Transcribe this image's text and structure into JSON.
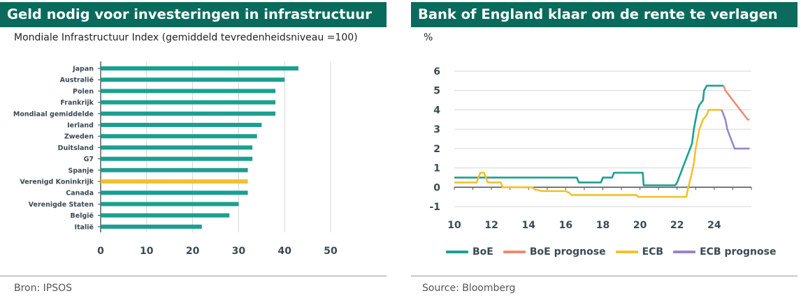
{
  "left": {
    "title": "Geld nodig voor investeringen in infrastructuur",
    "subtitle": "Mondiale Infrastructuur Index (gemiddeld tevredenheidsniveau =100)",
    "source": "Bron: IPSOS"
  },
  "right": {
    "title": "Bank of England klaar om de rente te verlagen",
    "subtitle": "%",
    "source": "Source: Bloomberg"
  },
  "colors": {
    "teal": "#1aa090",
    "yellow": "#f2c12e",
    "salmon": "#f08a74",
    "purple": "#9a86c8",
    "title_bg": "#0a6b5c"
  },
  "chart_data": [
    {
      "type": "bar",
      "orientation": "horizontal",
      "title": "Geld nodig voor investeringen in infrastructuur",
      "subtitle": "Mondiale Infrastructuur Index (gemiddeld tevredenheidsniveau =100)",
      "categories": [
        "Japan",
        "Australië",
        "Polen",
        "Frankrijk",
        "Mondiaal gemiddelde",
        "Ierland",
        "Zweden",
        "Duitsland",
        "G7",
        "Spanje",
        "Verenigd Koninkrijk",
        "Canada",
        "Verenigde Staten",
        "België",
        "Italië"
      ],
      "values": [
        43,
        40,
        38,
        38,
        38,
        35,
        34,
        33,
        33,
        32,
        32,
        32,
        30,
        28,
        22
      ],
      "highlight": "Verenigd Koninkrijk",
      "xlim": [
        0,
        50
      ],
      "xticks": [
        "0",
        "10",
        "20",
        "30",
        "40",
        "50"
      ],
      "grid": "vertical gridlines"
    },
    {
      "type": "line",
      "title": "Bank of England klaar om de rente te verlagen",
      "ylabel": "%",
      "ylim": [
        -1,
        6
      ],
      "yticks": [
        "6",
        "5",
        "4",
        "3",
        "2",
        "1",
        "0",
        "-1"
      ],
      "xlim": [
        10,
        26
      ],
      "xticks": [
        "10",
        "12",
        "14",
        "16",
        "18",
        "20",
        "22",
        "24"
      ],
      "legend_position": "bottom",
      "series": [
        {
          "name": "BoE",
          "color": "#1aa090",
          "points": [
            [
              10,
              0.5
            ],
            [
              16.6,
              0.5
            ],
            [
              16.7,
              0.25
            ],
            [
              17.9,
              0.25
            ],
            [
              18.0,
              0.5
            ],
            [
              18.5,
              0.5
            ],
            [
              18.6,
              0.75
            ],
            [
              20.15,
              0.75
            ],
            [
              20.2,
              0.1
            ],
            [
              21.9,
              0.1
            ],
            [
              22.0,
              0.25
            ],
            [
              22.1,
              0.5
            ],
            [
              22.2,
              0.75
            ],
            [
              22.3,
              1.0
            ],
            [
              22.4,
              1.25
            ],
            [
              22.6,
              1.75
            ],
            [
              22.8,
              2.25
            ],
            [
              22.9,
              3.0
            ],
            [
              23.0,
              3.5
            ],
            [
              23.1,
              4.0
            ],
            [
              23.2,
              4.25
            ],
            [
              23.4,
              4.5
            ],
            [
              23.45,
              5.0
            ],
            [
              23.6,
              5.25
            ],
            [
              24.5,
              5.25
            ]
          ]
        },
        {
          "name": "BoE prognose",
          "color": "#f08a74",
          "points": [
            [
              24.5,
              5.25
            ],
            [
              24.6,
              5.0
            ],
            [
              24.8,
              4.75
            ],
            [
              25.0,
              4.5
            ],
            [
              25.2,
              4.25
            ],
            [
              25.4,
              4.0
            ],
            [
              25.6,
              3.75
            ],
            [
              25.8,
              3.5
            ],
            [
              25.9,
              3.5
            ]
          ]
        },
        {
          "name": "ECB",
          "color": "#f2c12e",
          "points": [
            [
              10,
              0.25
            ],
            [
              11.2,
              0.25
            ],
            [
              11.3,
              0.5
            ],
            [
              11.4,
              0.75
            ],
            [
              11.6,
              0.75
            ],
            [
              11.8,
              0.25
            ],
            [
              12.5,
              0.25
            ],
            [
              12.6,
              0.0
            ],
            [
              14.2,
              0.0
            ],
            [
              14.3,
              -0.1
            ],
            [
              14.7,
              -0.2
            ],
            [
              16.0,
              -0.2
            ],
            [
              16.2,
              -0.3
            ],
            [
              16.3,
              -0.4
            ],
            [
              19.8,
              -0.4
            ],
            [
              19.9,
              -0.5
            ],
            [
              22.5,
              -0.5
            ],
            [
              22.6,
              0.0
            ],
            [
              22.8,
              0.75
            ],
            [
              22.9,
              1.25
            ],
            [
              23.0,
              2.0
            ],
            [
              23.1,
              2.5
            ],
            [
              23.2,
              3.0
            ],
            [
              23.4,
              3.5
            ],
            [
              23.6,
              3.75
            ],
            [
              23.7,
              4.0
            ],
            [
              24.4,
              4.0
            ]
          ]
        },
        {
          "name": "ECB prognose",
          "color": "#9a86c8",
          "points": [
            [
              24.4,
              4.0
            ],
            [
              24.5,
              3.75
            ],
            [
              24.6,
              3.5
            ],
            [
              24.7,
              3.0
            ],
            [
              24.8,
              2.75
            ],
            [
              24.9,
              2.5
            ],
            [
              25.0,
              2.25
            ],
            [
              25.1,
              2.0
            ],
            [
              25.9,
              2.0
            ]
          ]
        }
      ]
    }
  ]
}
